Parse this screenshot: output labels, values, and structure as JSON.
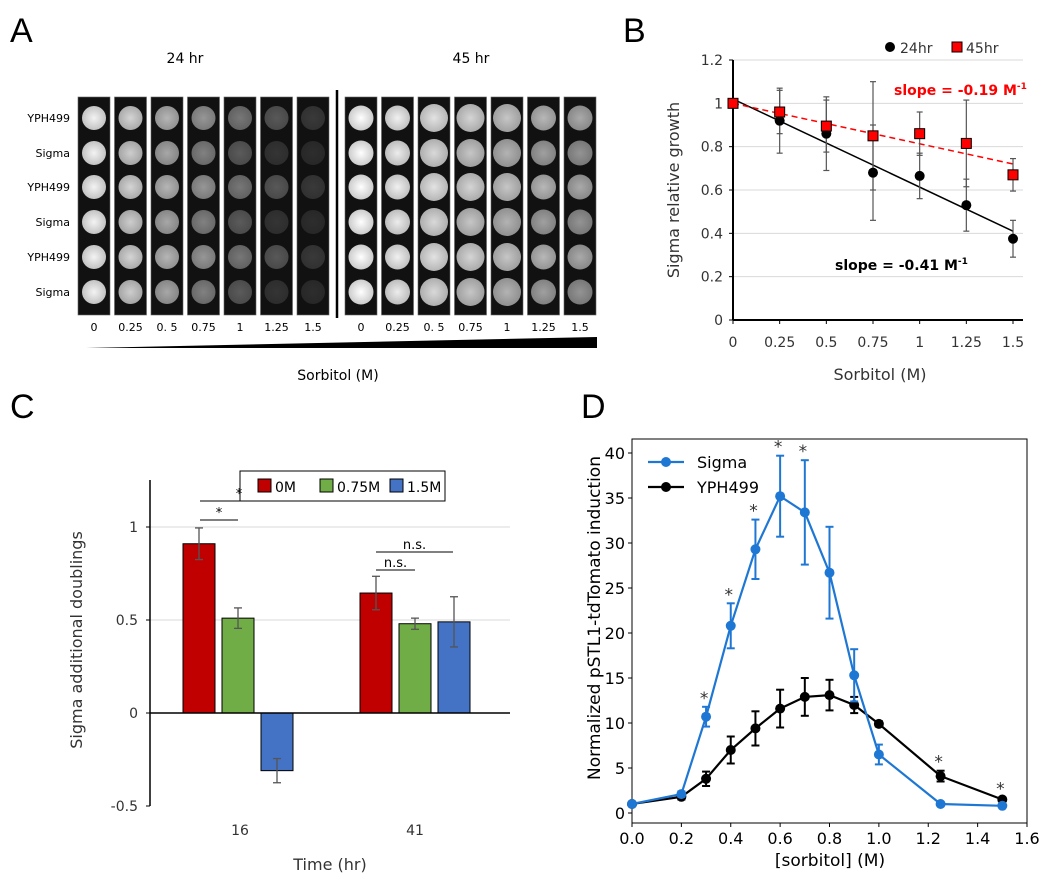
{
  "panel_labels": [
    "A",
    "B",
    "C",
    "D"
  ],
  "panel_a": {
    "time_labels": [
      "24 hr",
      "45 hr"
    ],
    "row_labels": [
      "YPH499",
      "Sigma",
      "YPH499",
      "Sigma",
      "YPH499",
      "Sigma"
    ],
    "concentrations": [
      "0",
      "0.25",
      "0. 5",
      "0.75",
      "1",
      "1.25",
      "1.5"
    ],
    "xlabel": "Sorbitol (M)"
  },
  "chart_data": [
    {
      "id": "B",
      "type": "scatter",
      "xlabel": "Sorbitol (M)",
      "ylabel": "Sigma relative growth",
      "xlim": [
        0,
        1.5
      ],
      "ylim": [
        0,
        1.2
      ],
      "xticks": [
        "0",
        "0.25",
        "0.5",
        "0.75",
        "1",
        "1.25",
        "1.5"
      ],
      "yticks": [
        "0",
        "0.2",
        "0.4",
        "0.6",
        "0.8",
        "1",
        "1.2"
      ],
      "grid": true,
      "legend_position": "top-right",
      "x": [
        0,
        0.25,
        0.5,
        0.75,
        1,
        1.25,
        1.5
      ],
      "series": [
        {
          "name": "24hr",
          "color": "#000000",
          "marker": "circle",
          "values": [
            1,
            0.92,
            0.86,
            0.68,
            0.665,
            0.53,
            0.375
          ],
          "errors": [
            0,
            0.15,
            0.17,
            0.22,
            0.105,
            0.12,
            0.085
          ],
          "fit": [
            1.02,
            0.41
          ],
          "fit_label": "slope = -0.41 M",
          "fit_sup": "-1"
        },
        {
          "name": "45hr",
          "color": "#ff0000",
          "marker": "square",
          "values": [
            1,
            0.96,
            0.895,
            0.85,
            0.86,
            0.815,
            0.67
          ],
          "errors": [
            0,
            0.1,
            0.12,
            0.25,
            0.1,
            0.2,
            0.075
          ],
          "fit": [
            1.0,
            0.72
          ],
          "fit_label": "slope = -0.19 M",
          "fit_sup": "-1"
        }
      ]
    },
    {
      "id": "C",
      "type": "bar",
      "xlabel": "Time (hr)",
      "ylabel": "Sigma additional doublings",
      "categories": [
        "16",
        "41"
      ],
      "ylim": [
        -0.5,
        1.25
      ],
      "yticks": [
        "-0.5",
        "0",
        "0.5",
        "1"
      ],
      "grid": true,
      "legend_position": "top",
      "series": [
        {
          "name": "0M",
          "color": "#c00000",
          "values": [
            0.91,
            0.645
          ],
          "errors": [
            0.085,
            0.09
          ]
        },
        {
          "name": "0.75M",
          "color": "#70ad47",
          "values": [
            0.51,
            0.48
          ],
          "errors": [
            0.055,
            0.03
          ]
        },
        {
          "name": "1.5M",
          "color": "#4472c4",
          "values": [
            -0.31,
            0.49
          ],
          "errors": [
            0.065,
            0.135
          ]
        }
      ],
      "annotations": [
        "*",
        "*",
        "n.s.",
        "n.s."
      ]
    },
    {
      "id": "D",
      "type": "line",
      "xlabel": "[sorbitol] (M)",
      "ylabel": "Normalized pSTL1-tdTomato induction",
      "xlim": [
        0,
        1.6
      ],
      "ylim": [
        -1.5,
        41.5
      ],
      "xticks": [
        "0.0",
        "0.2",
        "0.4",
        "0.6",
        "0.8",
        "1.0",
        "1.2",
        "1.4",
        "1.6"
      ],
      "yticks": [
        "0",
        "5",
        "10",
        "15",
        "20",
        "25",
        "30",
        "35",
        "40"
      ],
      "legend_position": "top-left",
      "x": [
        0,
        0.2,
        0.3,
        0.4,
        0.5,
        0.6,
        0.7,
        0.8,
        0.9,
        1.0,
        1.25,
        1.5
      ],
      "series": [
        {
          "name": "Sigma",
          "color": "#1f77d4",
          "values": [
            1,
            2.1,
            10.7,
            20.8,
            29.3,
            35.2,
            33.4,
            26.7,
            15.3,
            6.5,
            1.0,
            0.8
          ],
          "errors": [
            0,
            0.3,
            1.1,
            2.5,
            3.3,
            4.5,
            5.8,
            5.1,
            2.9,
            1.1,
            0,
            0
          ]
        },
        {
          "name": "YPH499",
          "color": "#000000",
          "values": [
            1,
            1.8,
            3.8,
            7.0,
            9.4,
            11.6,
            12.9,
            13.1,
            12.0,
            9.9,
            4.1,
            1.5
          ],
          "errors": [
            0,
            0.3,
            0.8,
            1.5,
            1.9,
            2.1,
            2.1,
            1.7,
            0.9,
            0.3,
            0.6,
            0.2
          ]
        }
      ],
      "significance_x": [
        0.3,
        0.4,
        0.5,
        0.6,
        0.7,
        1.25,
        1.5
      ],
      "significance_mark": "*"
    }
  ]
}
